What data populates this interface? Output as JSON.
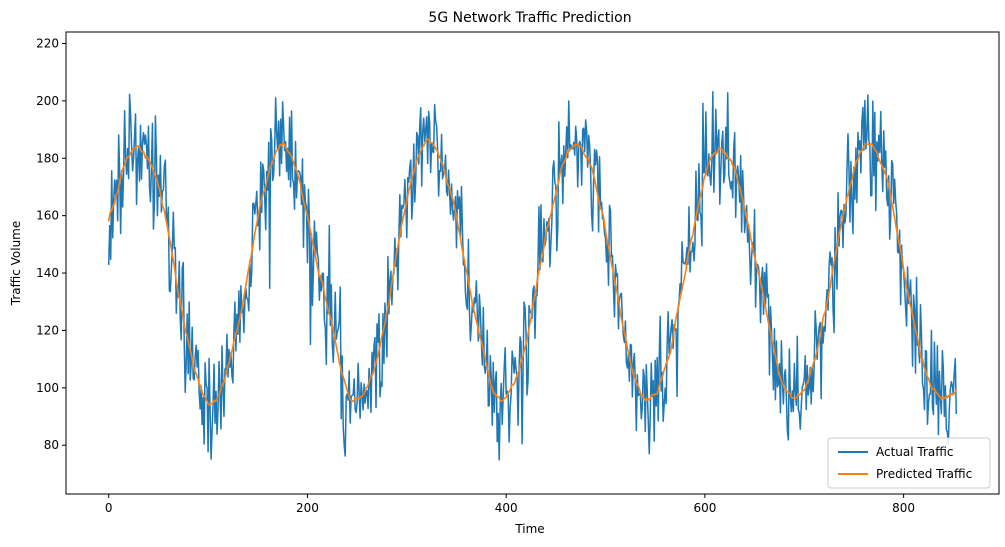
{
  "chart_data": {
    "type": "line",
    "title": "5G Network Traffic Prediction",
    "xlabel": "Time",
    "ylabel": "Traffic Volume",
    "xlim": [
      -43,
      896
    ],
    "ylim": [
      63,
      224
    ],
    "xticks": [
      0,
      200,
      400,
      600,
      800
    ],
    "yticks": [
      80,
      100,
      120,
      140,
      160,
      180,
      200,
      220
    ],
    "grid": false,
    "legend_position": "lower right",
    "model": {
      "n": 854,
      "period": 147,
      "baseline": 140,
      "amplitude": 45,
      "phase_offset": 0.1
    },
    "series": [
      {
        "name": "Actual Traffic",
        "color": "#1f77b4",
        "noise_sd": 10,
        "seed": 7
      },
      {
        "name": "Predicted Traffic",
        "color": "#ff7f0e",
        "smoothing_window": 9
      }
    ]
  }
}
